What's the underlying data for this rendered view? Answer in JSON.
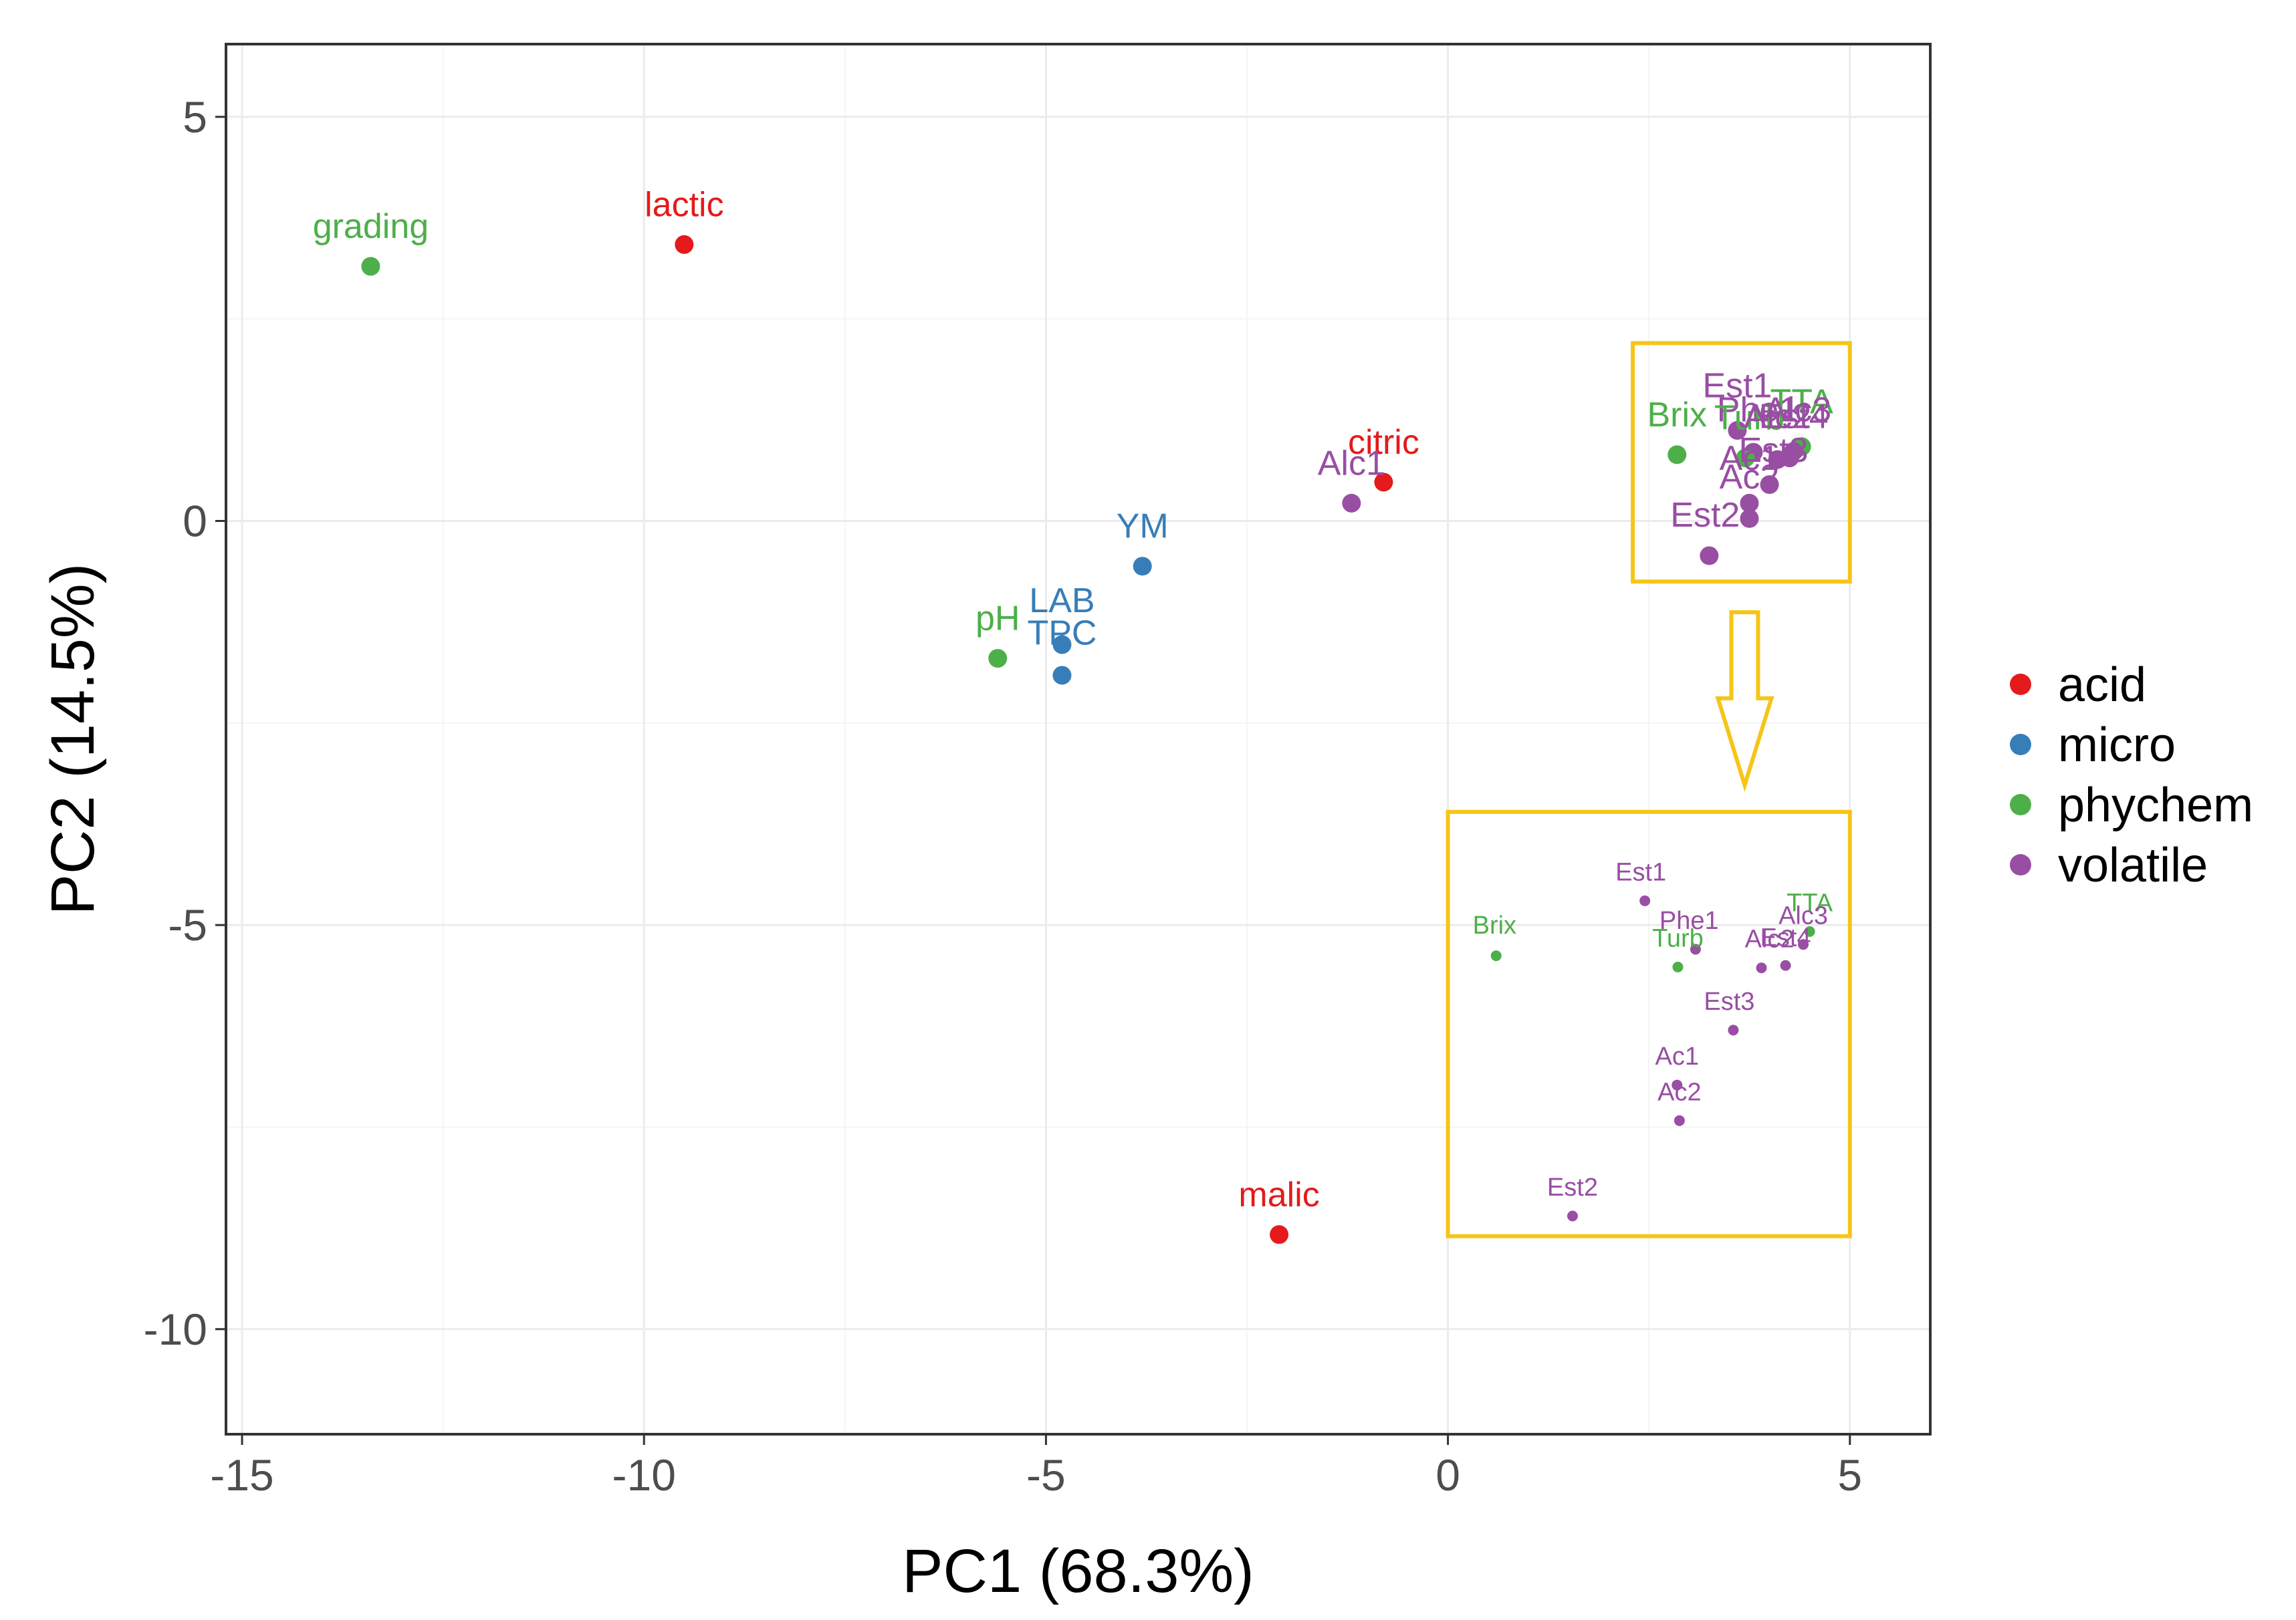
{
  "chart_data": {
    "type": "scatter",
    "xlabel": "PC1 (68.3%)",
    "ylabel": "PC2 (14.5%)",
    "xlim": [
      -15.2,
      6.0
    ],
    "ylim": [
      -11.3,
      5.9
    ],
    "x_ticks": [
      -15,
      -10,
      -5,
      0,
      5
    ],
    "x_tick_labels": [
      "-15",
      "-10",
      "-5",
      "0",
      "5"
    ],
    "y_ticks": [
      5,
      0,
      -5,
      -10
    ],
    "y_tick_labels": [
      "5",
      "0",
      "-5",
      "-10"
    ],
    "grid": true,
    "legend_position": "right",
    "groups": [
      {
        "name": "acid",
        "color": "#E41A1C"
      },
      {
        "name": "micro",
        "color": "#377EB8"
      },
      {
        "name": "phychem",
        "color": "#4DAF4A"
      },
      {
        "name": "volatile",
        "color": "#984EA3"
      }
    ],
    "points": [
      {
        "label": "grading",
        "group": "phychem",
        "x": -13.4,
        "y": 3.15
      },
      {
        "label": "lactic",
        "group": "acid",
        "x": -9.5,
        "y": 3.42
      },
      {
        "label": "citric",
        "group": "acid",
        "x": -0.8,
        "y": 0.48
      },
      {
        "label": "Alc1",
        "group": "volatile",
        "x": -1.2,
        "y": 0.22
      },
      {
        "label": "YM",
        "group": "micro",
        "x": -3.8,
        "y": -0.56
      },
      {
        "label": "LAB",
        "group": "micro",
        "x": -4.8,
        "y": -1.53
      },
      {
        "label": "TPC",
        "group": "micro",
        "x": -4.8,
        "y": -1.91
      },
      {
        "label": "pH",
        "group": "phychem",
        "x": -5.6,
        "y": -1.7
      },
      {
        "label": "malic",
        "group": "acid",
        "x": -2.1,
        "y": -8.83
      },
      {
        "label": "Brix",
        "group": "phychem",
        "x": 2.85,
        "y": 0.82
      },
      {
        "label": "Est1",
        "group": "volatile",
        "x": 3.6,
        "y": 1.12
      },
      {
        "label": "Phe1",
        "group": "volatile",
        "x": 3.8,
        "y": 0.85
      },
      {
        "label": "Turb",
        "group": "phychem",
        "x": 3.7,
        "y": 0.78
      },
      {
        "label": "TTA",
        "group": "phychem",
        "x": 4.4,
        "y": 0.92
      },
      {
        "label": "Alc3",
        "group": "volatile",
        "x": 4.3,
        "y": 0.86
      },
      {
        "label": "Alc2",
        "group": "volatile",
        "x": 4.1,
        "y": 0.76
      },
      {
        "label": "Est4",
        "group": "volatile",
        "x": 4.25,
        "y": 0.78
      },
      {
        "label": "Est3",
        "group": "volatile",
        "x": 4.0,
        "y": 0.45
      },
      {
        "label": "Ac1",
        "group": "volatile",
        "x": 3.75,
        "y": 0.22
      },
      {
        "label": "Ac2",
        "group": "volatile",
        "x": 3.75,
        "y": 0.03
      },
      {
        "label": "Est2",
        "group": "volatile",
        "x": 3.25,
        "y": -0.43
      }
    ],
    "main_labels": [
      {
        "text": "grading",
        "group": "phychem",
        "x": -13.4,
        "y": 3.65
      },
      {
        "text": "lactic",
        "group": "acid",
        "x": -9.5,
        "y": 3.92
      },
      {
        "text": "citric",
        "group": "acid",
        "x": -0.8,
        "y": 0.98
      },
      {
        "text": "Alc1",
        "group": "volatile",
        "x": -1.2,
        "y": 0.72
      },
      {
        "text": "YM",
        "group": "micro",
        "x": -3.8,
        "y": -0.06
      },
      {
        "text": "LAB",
        "group": "micro",
        "x": -4.8,
        "y": -0.98
      },
      {
        "text": "TPC",
        "group": "micro",
        "x": -4.8,
        "y": -1.38
      },
      {
        "text": "pH",
        "group": "phychem",
        "x": -5.6,
        "y": -1.2
      },
      {
        "text": "malic",
        "group": "acid",
        "x": -2.1,
        "y": -8.33
      },
      {
        "text": "Brix",
        "group": "phychem",
        "x": 2.85,
        "y": 1.32
      },
      {
        "text": "Est1",
        "group": "volatile",
        "x": 3.6,
        "y": 1.68
      },
      {
        "text": "Phe1",
        "group": "volatile",
        "x": 3.85,
        "y": 1.38
      },
      {
        "text": "Turb",
        "group": "phychem",
        "x": 3.75,
        "y": 1.28
      },
      {
        "text": "TTA",
        "group": "phychem",
        "x": 4.4,
        "y": 1.48
      },
      {
        "text": "Alc3",
        "group": "volatile",
        "x": 4.35,
        "y": 1.38
      },
      {
        "text": "Alc2",
        "group": "volatile",
        "x": 4.1,
        "y": 1.3
      },
      {
        "text": "Est4",
        "group": "volatile",
        "x": 4.3,
        "y": 1.3
      },
      {
        "text": "Est3",
        "group": "volatile",
        "x": 4.05,
        "y": 0.88
      },
      {
        "text": "Ac1",
        "group": "volatile",
        "x": 3.75,
        "y": 0.78
      },
      {
        "text": "Ac2",
        "group": "volatile",
        "x": 3.75,
        "y": 0.55
      },
      {
        "text": "Est2",
        "group": "volatile",
        "x": 3.2,
        "y": 0.08
      }
    ],
    "zoom_region": {
      "x": [
        2.3,
        5.0
      ],
      "y": [
        -0.75,
        2.2
      ]
    },
    "inset_region": {
      "x": [
        0.0,
        5.0
      ],
      "y": [
        -8.85,
        -3.6
      ]
    },
    "inset_points": [
      {
        "label": "Est1",
        "group": "volatile",
        "x": 2.45,
        "y": -4.7
      },
      {
        "label": "Brix",
        "group": "phychem",
        "x": 0.6,
        "y": -5.38
      },
      {
        "label": "Phe1",
        "group": "volatile",
        "x": 3.08,
        "y": -5.3
      },
      {
        "label": "Turb",
        "group": "phychem",
        "x": 2.86,
        "y": -5.52
      },
      {
        "label": "TTA",
        "group": "phychem",
        "x": 4.5,
        "y": -5.08
      },
      {
        "label": "Alc3",
        "group": "volatile",
        "x": 4.42,
        "y": -5.24
      },
      {
        "label": "Alc2",
        "group": "volatile",
        "x": 3.9,
        "y": -5.53
      },
      {
        "label": "Est4",
        "group": "volatile",
        "x": 4.2,
        "y": -5.5
      },
      {
        "label": "Est3",
        "group": "volatile",
        "x": 3.55,
        "y": -6.3
      },
      {
        "label": "Ac1",
        "group": "volatile",
        "x": 2.85,
        "y": -6.98
      },
      {
        "label": "Ac2",
        "group": "volatile",
        "x": 2.88,
        "y": -7.42
      },
      {
        "label": "Est2",
        "group": "volatile",
        "x": 1.55,
        "y": -8.6
      }
    ],
    "inset_labels": [
      {
        "text": "Est1",
        "group": "volatile",
        "x": 2.4,
        "y": -4.34
      },
      {
        "text": "Brix",
        "group": "phychem",
        "x": 0.58,
        "y": -5.0
      },
      {
        "text": "Phe1",
        "group": "volatile",
        "x": 3.0,
        "y": -4.94
      },
      {
        "text": "Turb",
        "group": "phychem",
        "x": 2.86,
        "y": -5.16
      },
      {
        "text": "TTA",
        "group": "phychem",
        "x": 4.5,
        "y": -4.72
      },
      {
        "text": "Alc3",
        "group": "volatile",
        "x": 4.42,
        "y": -4.88
      },
      {
        "text": "Alc2",
        "group": "volatile",
        "x": 4.0,
        "y": -5.17
      },
      {
        "text": "Est4",
        "group": "volatile",
        "x": 4.2,
        "y": -5.15
      },
      {
        "text": "Est3",
        "group": "volatile",
        "x": 3.5,
        "y": -5.94
      },
      {
        "text": "Ac1",
        "group": "volatile",
        "x": 2.85,
        "y": -6.62
      },
      {
        "text": "Ac2",
        "group": "volatile",
        "x": 2.88,
        "y": -7.06
      },
      {
        "text": "Est2",
        "group": "volatile",
        "x": 1.55,
        "y": -8.24
      }
    ],
    "annotation_color": "#F5C518"
  }
}
